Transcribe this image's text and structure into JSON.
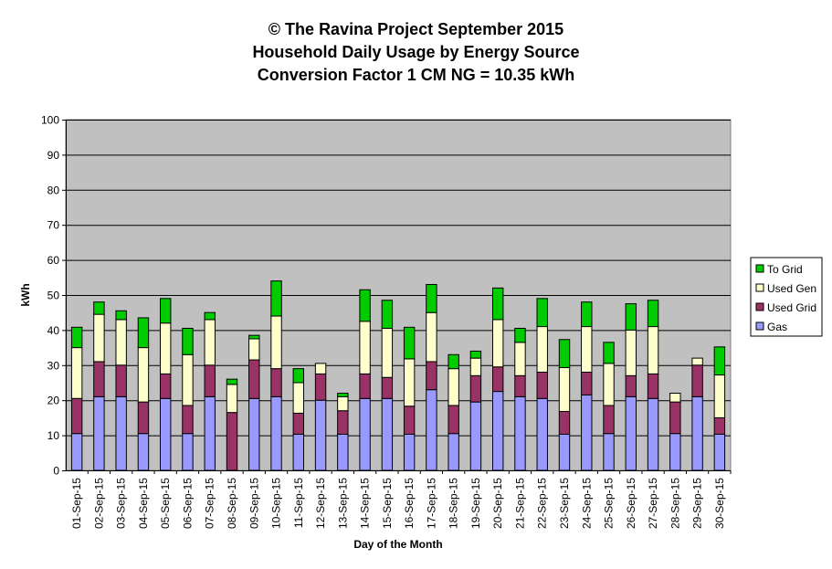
{
  "chart_data": {
    "type": "bar",
    "stacked": true,
    "title": [
      "© The Ravina Project September 2015",
      "Household Daily Usage by Energy Source",
      "Conversion Factor 1 CM NG = 10.35 kWh"
    ],
    "xlabel": "Day of the Month",
    "ylabel": "kWh",
    "ylim": [
      0,
      100
    ],
    "yticks": [
      0,
      10,
      20,
      30,
      40,
      50,
      60,
      70,
      80,
      90,
      100
    ],
    "grid": true,
    "legend_position": "right",
    "plot_background": "#c0c0c0",
    "categories": [
      "01-Sep-15",
      "02-Sep-15",
      "03-Sep-15",
      "04-Sep-15",
      "05-Sep-15",
      "06-Sep-15",
      "07-Sep-15",
      "08-Sep-15",
      "09-Sep-15",
      "10-Sep-15",
      "11-Sep-15",
      "12-Sep-15",
      "13-Sep-15",
      "14-Sep-15",
      "15-Sep-15",
      "16-Sep-15",
      "17-Sep-15",
      "18-Sep-15",
      "19-Sep-15",
      "20-Sep-15",
      "21-Sep-15",
      "22-Sep-15",
      "23-Sep-15",
      "24-Sep-15",
      "25-Sep-15",
      "26-Sep-15",
      "27-Sep-15",
      "28-Sep-15",
      "29-Sep-15",
      "30-Sep-15"
    ],
    "series": [
      {
        "name": "Gas",
        "color": "#9999ff",
        "values": [
          10.5,
          21,
          21,
          10.5,
          20.5,
          10.5,
          21,
          0,
          20.5,
          21,
          10.3,
          20,
          10.3,
          20.5,
          20.5,
          10.3,
          23,
          10.5,
          19.5,
          22.5,
          21,
          20.5,
          10.3,
          21.5,
          10.5,
          21,
          20.5,
          10.5,
          21,
          10.3
        ]
      },
      {
        "name": "Used Grid",
        "color": "#993366",
        "values": [
          10,
          10,
          9,
          9,
          7,
          8,
          9,
          16.5,
          11,
          8,
          6,
          7.5,
          6.7,
          7,
          6,
          8,
          8,
          8,
          7.5,
          7,
          6,
          7.5,
          6.5,
          6.5,
          8,
          6,
          7,
          9,
          9,
          4.7
        ]
      },
      {
        "name": "Used Gen",
        "color": "#ffffcc",
        "values": [
          14.5,
          13.5,
          13,
          15.5,
          14.5,
          14.5,
          13,
          8,
          6,
          15,
          8.7,
          3,
          4,
          15,
          14,
          13.5,
          14,
          10.5,
          5,
          13.5,
          9.5,
          13,
          12.5,
          13,
          12,
          13,
          13.5,
          2.5,
          2,
          12.2
        ]
      },
      {
        "name": "To Grid",
        "color": "#00cc00",
        "values": [
          5.8,
          3.5,
          2.5,
          8.5,
          7,
          7.5,
          2,
          1.5,
          1,
          10,
          4,
          0,
          1,
          9,
          8,
          9,
          8,
          4,
          2,
          9,
          4,
          8,
          8,
          7,
          6,
          7.5,
          7.5,
          0,
          0,
          8
        ]
      }
    ]
  }
}
